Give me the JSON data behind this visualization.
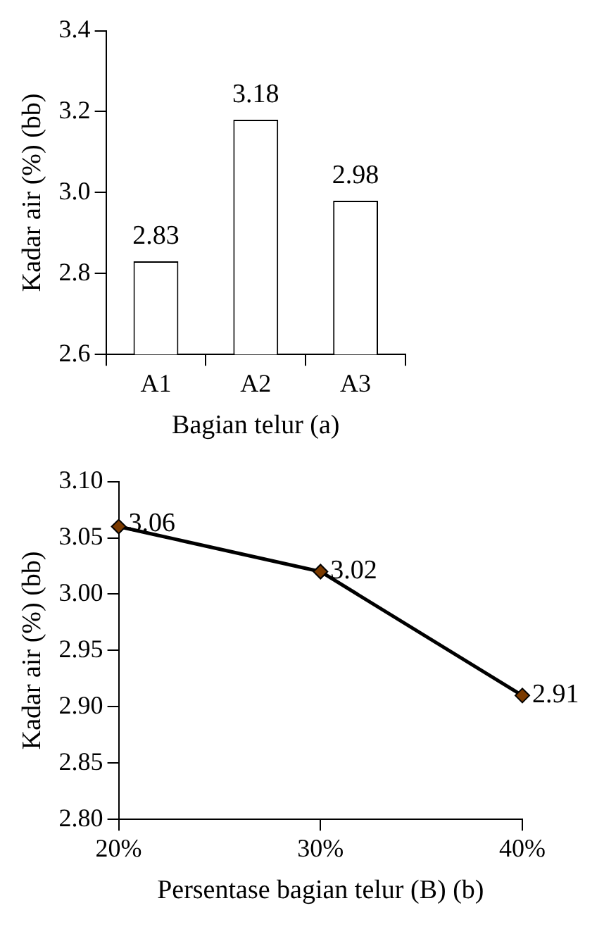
{
  "chart_data": [
    {
      "type": "bar",
      "categories": [
        "A1",
        "A2",
        "A3"
      ],
      "values": [
        2.83,
        3.18,
        2.98
      ],
      "color": "#ffffff",
      "ylim": [
        2.6,
        3.4
      ],
      "yticks": [
        2.6,
        2.8,
        {
          "value": 3,
          "label": "3.0"
        },
        3.2,
        3.4
      ],
      "xlabel": "Bagian telur (a)",
      "ylabel": "Kadar air (%) (bb)",
      "grid": false,
      "legend": false,
      "data_labels": true
    },
    {
      "type": "line",
      "categories": [
        "20%",
        "30%",
        "40%"
      ],
      "values": [
        3.06,
        3.02,
        2.91
      ],
      "color": "#000000",
      "marker": "diamond",
      "line_style": "solid",
      "ylim": [
        2.8,
        3.1
      ],
      "yticks": [
        {
          "value": 2.8,
          "label": "2.80"
        },
        2.85,
        {
          "value": 2.9,
          "label": "2.90"
        },
        2.95,
        {
          "value": 3,
          "label": "3.00"
        },
        3.05,
        {
          "value": 3.1,
          "label": "3.10"
        }
      ],
      "xlabel": "Persentase bagian telur (B) (b)",
      "ylabel": "Kadar air (%) (bb)",
      "grid": false,
      "legend": false,
      "data_labels": true
    }
  ]
}
